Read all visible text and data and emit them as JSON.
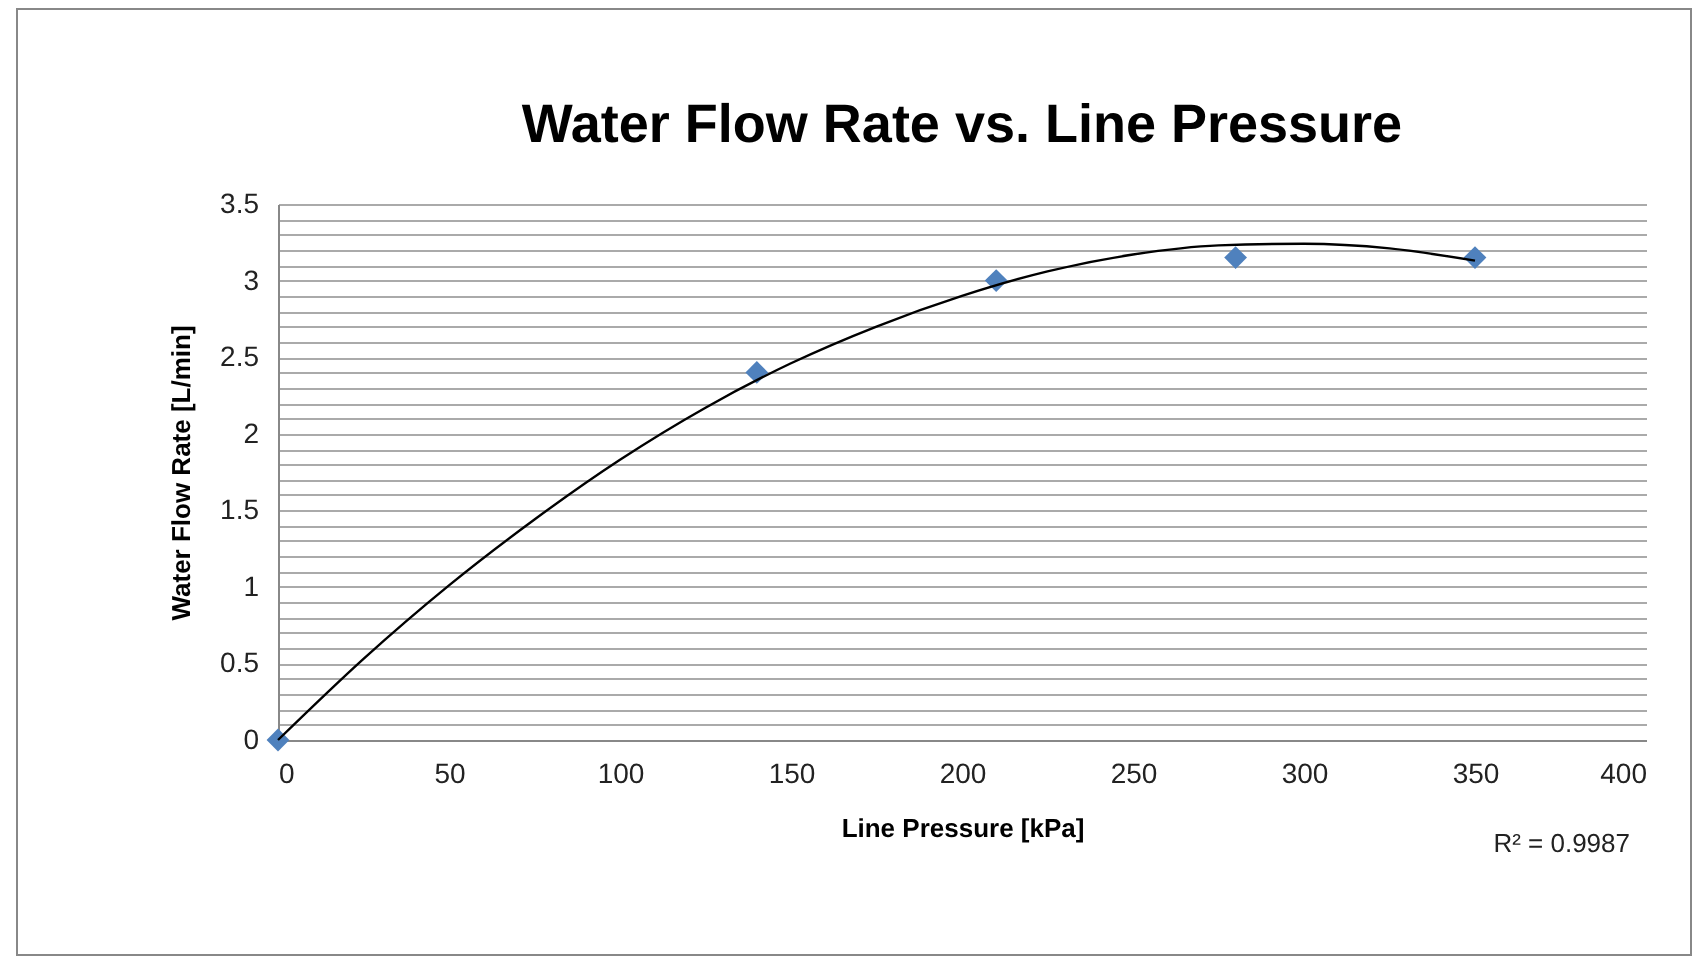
{
  "chart_data": {
    "type": "scatter",
    "title": "Water Flow Rate vs. Line Pressure",
    "xlabel": "Line Pressure [kPa]",
    "ylabel": "Water Flow Rate [L/min]",
    "xlim": [
      0,
      400
    ],
    "xticks": [
      0,
      50,
      100,
      150,
      200,
      250,
      300,
      350,
      400
    ],
    "ylim": [
      0,
      3.5
    ],
    "yticks": [
      0,
      {
        "value": 0.1,
        "label": null
      },
      {
        "value": 0.2,
        "label": null
      },
      {
        "value": 0.3,
        "label": null
      },
      {
        "value": 0.4,
        "label": null
      },
      0.5,
      {
        "value": 0.6,
        "label": null
      },
      {
        "value": 0.7,
        "label": null
      },
      {
        "value": 0.8,
        "label": null
      },
      {
        "value": 0.9,
        "label": null
      },
      1,
      {
        "value": 1.1,
        "label": null
      },
      {
        "value": 1.2,
        "label": null
      },
      {
        "value": 1.3,
        "label": null
      },
      {
        "value": 1.4,
        "label": null
      },
      1.5,
      {
        "value": 1.6,
        "label": null
      },
      {
        "value": 1.7,
        "label": null
      },
      {
        "value": 1.8,
        "label": null
      },
      {
        "value": 1.9,
        "label": null
      },
      2,
      {
        "value": 2.1,
        "label": null
      },
      {
        "value": 2.2,
        "label": null
      },
      {
        "value": 2.3,
        "label": null
      },
      {
        "value": 2.4,
        "label": null
      },
      2.5,
      {
        "value": 2.6,
        "label": null
      },
      {
        "value": 2.7,
        "label": null
      },
      {
        "value": 2.8,
        "label": null
      },
      {
        "value": 2.9,
        "label": null
      },
      3,
      {
        "value": 3.1,
        "label": null
      },
      {
        "value": 3.2,
        "label": null
      },
      {
        "value": 3.3,
        "label": null
      },
      {
        "value": 3.4,
        "label": null
      },
      3.5
    ],
    "grid": "y",
    "series": [
      {
        "type": "line",
        "marker": "none",
        "color": "#000000",
        "x": [
          0,
          25,
          50,
          75,
          100,
          125,
          150,
          175,
          200,
          225,
          250,
          275,
          300,
          325,
          350
        ],
        "values": [
          0.0,
          0.53,
          1.01,
          1.44,
          1.83,
          2.17,
          2.46,
          2.7,
          2.9,
          3.06,
          3.17,
          3.23,
          3.24,
          3.21,
          3.13
        ]
      },
      {
        "marker": "diamond",
        "color": "#4f81bd",
        "x": [
          0,
          140,
          210,
          280,
          350
        ],
        "values": [
          0,
          2.4,
          3.0,
          3.15,
          3.15
        ]
      }
    ],
    "annotations": [
      "R² = 0.9987"
    ]
  }
}
